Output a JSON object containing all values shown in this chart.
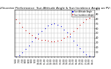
{
  "title": "Solar PV/Inverter Performance  Sun Altitude Angle & Sun Incidence Angle on PV Panels",
  "title_fontsize": 3.2,
  "background_color": "#ffffff",
  "grid_color": "#bbbbbb",
  "blue_color": "#0000dd",
  "red_color": "#cc0000",
  "blue_label": "Sun Altitude Angle",
  "red_label": "Sun Incidence Angle",
  "ylim": [
    0,
    100
  ],
  "yticks": [
    10,
    20,
    30,
    40,
    50,
    60,
    70,
    80,
    90,
    100
  ],
  "ytick_fontsize": 2.5,
  "xtick_fontsize": 2.2,
  "x_labels": [
    "6:44",
    "7:00",
    "7:30",
    "8:00",
    "8:30",
    "9:00",
    "9:30",
    "10:00",
    "10:30",
    "11:00",
    "11:30",
    "12:00",
    "12:30",
    "13:00",
    "13:30",
    "14:00",
    "14:30",
    "15:00",
    "15:30",
    "16:00",
    "16:30",
    "17:00",
    "17:30",
    "18:00",
    "18:15"
  ],
  "blue_x": [
    0,
    1,
    2,
    3,
    4,
    5,
    6,
    7,
    8,
    9,
    10,
    11,
    12,
    13,
    14,
    15,
    16,
    17,
    18,
    19,
    20,
    21,
    22,
    23,
    24
  ],
  "blue_y": [
    0,
    3,
    9,
    16,
    24,
    32,
    40,
    48,
    55,
    61,
    66,
    69,
    70,
    68,
    64,
    58,
    51,
    43,
    34,
    25,
    17,
    10,
    4,
    1,
    0
  ],
  "red_x": [
    0,
    1,
    2,
    3,
    4,
    5,
    6,
    7,
    8,
    9,
    10,
    11,
    12,
    13,
    14,
    15,
    16,
    17,
    18,
    19,
    20,
    21,
    22,
    23,
    24
  ],
  "red_y": [
    80,
    72,
    63,
    56,
    50,
    45,
    41,
    38,
    36,
    35,
    34,
    33,
    33,
    34,
    36,
    39,
    43,
    48,
    54,
    61,
    68,
    74,
    79,
    83,
    85
  ],
  "legend_blue_label": "Sun Altitude Angle",
  "legend_red_label": "Sun Incidence Angle"
}
